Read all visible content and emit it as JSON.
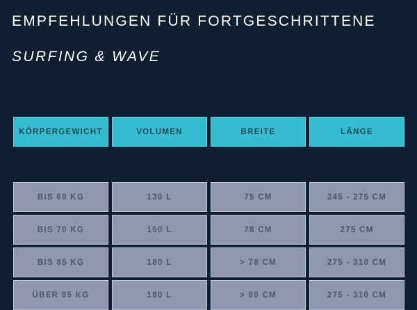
{
  "title": "EMPFEHLUNGEN FÜR FORTGESCHRITTENE",
  "subtitle": "SURFING & WAVE",
  "table": {
    "headers": [
      "KÖRPERGEWICHT",
      "VOLUMEN",
      "BREITE",
      "LÄNGE"
    ],
    "rows": [
      [
        "BIS 60 KG",
        "130 L",
        "75 CM",
        "245 - 275 CM"
      ],
      [
        "BIS 70 KG",
        "150 L",
        "78 CM",
        "275 CM"
      ],
      [
        "BIS 85 KG",
        "180 L",
        "> 78 CM",
        "275 - 310 CM"
      ],
      [
        "ÜBER 85 KG",
        "180 L",
        "> 80 CM",
        "275 - 310 CM"
      ]
    ]
  },
  "colors": {
    "background": "#0d1f30",
    "header_cell": "#36bcd0",
    "data_cell": "#8f96ad"
  }
}
